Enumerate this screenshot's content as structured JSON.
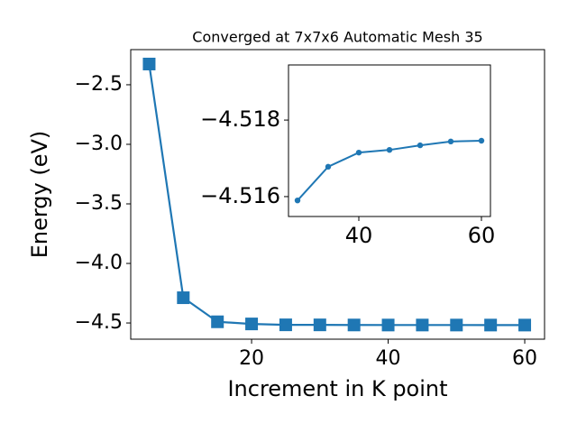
{
  "chart_data": [
    {
      "type": "line",
      "title": "Converged at 7x7x6 Automatic Mesh 35",
      "x_label": "Increment in K point",
      "y_label": "Energy (eV)",
      "x": [
        5,
        10,
        15,
        20,
        25,
        30,
        35,
        40,
        45,
        50,
        55,
        60
      ],
      "series": [
        {
          "color": "#1f77b4",
          "marker": "square",
          "values": [
            -2.326,
            -4.288,
            -4.49,
            -4.508,
            -4.5155,
            -4.5159,
            -4.5168,
            -4.5172,
            -4.5172,
            -4.5173,
            -4.5174,
            -4.5175
          ]
        }
      ],
      "xlim": [
        2.3,
        62.9
      ],
      "ylim": [
        -4.636,
        -2.205
      ],
      "xticks": [
        20,
        40,
        60
      ],
      "yticks": [
        {
          "value": -4.5,
          "label": "−4.5"
        },
        {
          "value": -4.0,
          "label": "−4.0"
        },
        {
          "value": -3.5,
          "label": "−3.5"
        },
        {
          "value": -3.0,
          "label": "−3.0"
        },
        {
          "value": -2.5,
          "label": "−2.5"
        }
      ]
    },
    {
      "type": "line",
      "x": [
        30,
        35,
        40,
        45,
        50,
        55,
        60
      ],
      "series": [
        {
          "color": "#1f77b4",
          "marker": "circle",
          "values": [
            -4.5159,
            -4.51678,
            -4.51715,
            -4.51722,
            -4.51734,
            -4.51744,
            -4.51746
          ]
        }
      ],
      "xlim": [
        28.53,
        61.47
      ],
      "ylim": [
        -4.51548,
        -4.51944
      ],
      "xticks": [
        40,
        60
      ],
      "yticks": [
        {
          "value": -4.516,
          "label": "−4.516"
        },
        {
          "value": -4.518,
          "label": "−4.518"
        }
      ]
    }
  ]
}
